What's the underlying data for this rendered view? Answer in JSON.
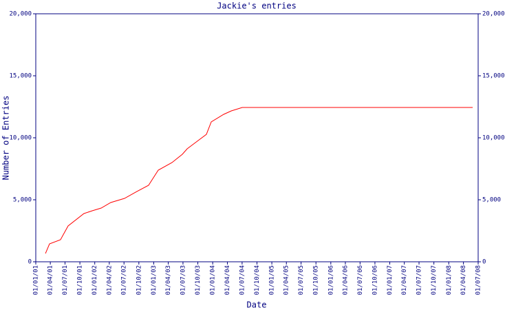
{
  "chart_data": {
    "type": "line",
    "title": "Jackie's entries",
    "x_label": "Date",
    "y_label": "Number of Entries",
    "color": "#ff0000",
    "axis_color": "#000080",
    "x": [
      "2001-03-02",
      "2001-03-27",
      "2001-06-03",
      "2001-07-20",
      "2001-10-26",
      "2001-12-16",
      "2002-02-10",
      "2002-04-10",
      "2002-07-04",
      "2002-09-19",
      "2002-11-30",
      "2003-01-29",
      "2003-04-24",
      "2003-06-27",
      "2003-07-27",
      "2003-10-03",
      "2003-11-23",
      "2003-12-23",
      "2004-03-09",
      "2004-04-25",
      "2004-07-02",
      "2008-05-28"
    ],
    "values": [
      667,
      1444,
      1778,
      2889,
      3889,
      4111,
      4333,
      4778,
      5111,
      5667,
      6167,
      7389,
      8000,
      8667,
      9111,
      9778,
      10278,
      11278,
      11889,
      12167,
      12444,
      12444
    ],
    "xlim": [
      "2001-01-01",
      "2008-07-01"
    ],
    "xticks": [
      {
        "value": "2001-01-01",
        "label": "01/01/01"
      },
      {
        "value": "2001-04-01",
        "label": "01/04/01"
      },
      {
        "value": "2001-07-01",
        "label": "01/07/01"
      },
      {
        "value": "2001-10-01",
        "label": "01/10/01"
      },
      {
        "value": "2002-01-01",
        "label": "01/01/02"
      },
      {
        "value": "2002-04-01",
        "label": "01/04/02"
      },
      {
        "value": "2002-07-01",
        "label": "01/07/02"
      },
      {
        "value": "2002-10-01",
        "label": "01/10/02"
      },
      {
        "value": "2003-01-01",
        "label": "01/01/03"
      },
      {
        "value": "2003-04-01",
        "label": "01/04/03"
      },
      {
        "value": "2003-07-01",
        "label": "01/07/03"
      },
      {
        "value": "2003-10-01",
        "label": "01/10/03"
      },
      {
        "value": "2004-01-01",
        "label": "01/01/04"
      },
      {
        "value": "2004-04-01",
        "label": "01/04/04"
      },
      {
        "value": "2004-07-01",
        "label": "01/07/04"
      },
      {
        "value": "2004-10-01",
        "label": "01/10/04"
      },
      {
        "value": "2005-01-01",
        "label": "01/01/05"
      },
      {
        "value": "2005-04-01",
        "label": "01/04/05"
      },
      {
        "value": "2005-07-01",
        "label": "01/07/05"
      },
      {
        "value": "2005-10-01",
        "label": "01/10/05"
      },
      {
        "value": "2006-01-01",
        "label": "01/01/06"
      },
      {
        "value": "2006-04-01",
        "label": "01/04/06"
      },
      {
        "value": "2006-07-01",
        "label": "01/07/06"
      },
      {
        "value": "2006-10-01",
        "label": "01/10/06"
      },
      {
        "value": "2007-01-01",
        "label": "01/01/07"
      },
      {
        "value": "2007-04-01",
        "label": "01/04/07"
      },
      {
        "value": "2007-07-01",
        "label": "01/07/07"
      },
      {
        "value": "2007-10-01",
        "label": "01/10/07"
      },
      {
        "value": "2008-01-01",
        "label": "01/01/08"
      },
      {
        "value": "2008-04-01",
        "label": "01/04/08"
      },
      {
        "value": "2008-07-01",
        "label": "01/07/08"
      }
    ],
    "ylim": [
      0,
      20000
    ],
    "yticks": [
      0,
      {
        "value": 5000,
        "label": "5,000"
      },
      {
        "value": 10000,
        "label": "10,000"
      },
      {
        "value": 15000,
        "label": "15,000"
      },
      {
        "value": 20000,
        "label": "20,000"
      }
    ],
    "y2lim": [
      0,
      20000
    ],
    "y2ticks": [
      0,
      {
        "value": 5000,
        "label": "5,000"
      },
      {
        "value": 10000,
        "label": "10,000"
      },
      {
        "value": 15000,
        "label": "15,000"
      },
      {
        "value": 20000,
        "label": "20,000"
      }
    ]
  }
}
